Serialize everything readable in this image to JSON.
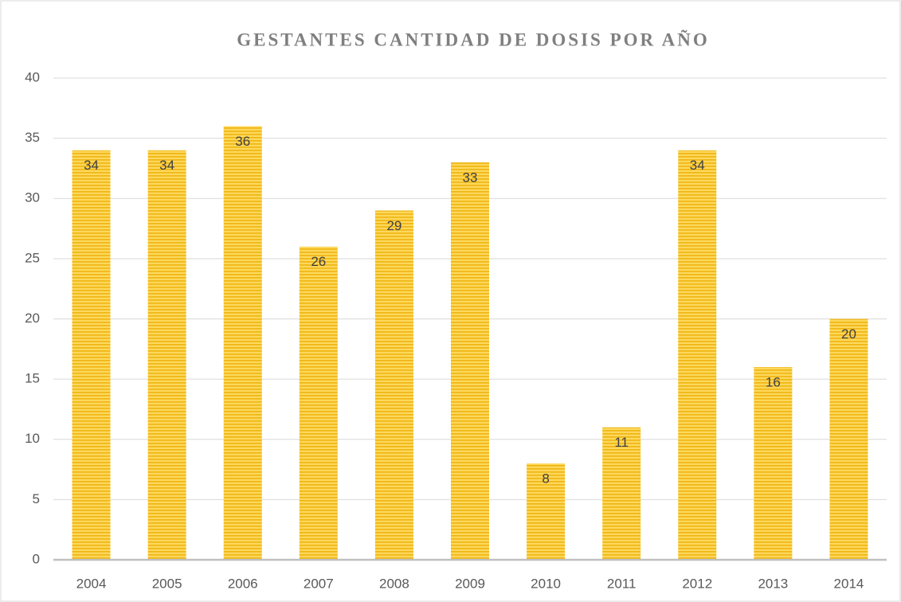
{
  "chart_data": {
    "type": "bar",
    "title": "GESTANTES CANTIDAD DE DOSIS POR AÑO",
    "categories": [
      "2004",
      "2005",
      "2006",
      "2007",
      "2008",
      "2009",
      "2010",
      "2011",
      "2012",
      "2013",
      "2014"
    ],
    "values": [
      34,
      34,
      36,
      26,
      29,
      33,
      8,
      11,
      34,
      16,
      20
    ],
    "color": "#f5c518",
    "ylim": [
      0,
      40
    ],
    "yticks": [
      0,
      5,
      10,
      15,
      20,
      25,
      30,
      35,
      40
    ],
    "grid": true
  }
}
